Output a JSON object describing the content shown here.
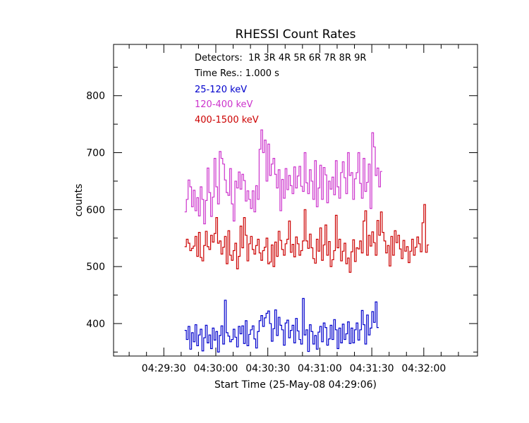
{
  "chart_data": {
    "type": "line",
    "title": "RHESSI Count Rates",
    "xlabel": "Start Time (25-May-08 04:29:06)",
    "ylabel": "counts",
    "x_tick_labels": [
      "04:29:30",
      "04:30:00",
      "04:30:30",
      "04:31:00",
      "04:31:30",
      "04:32:00"
    ],
    "x_tick_seconds": [
      24,
      54,
      84,
      114,
      144,
      174
    ],
    "xlim_seconds": [
      -5,
      205
    ],
    "y_ticks": [
      400,
      500,
      600,
      700,
      800
    ],
    "ylim": [
      343,
      890
    ],
    "grid": false,
    "annotations": {
      "detectors": "Detectors:  1R 3R 4R 5R 6R 7R 8R 9R",
      "time_res": "Time Res.: 1.000 s"
    },
    "series": [
      {
        "name": "25-120 keV",
        "color": "#0000cc",
        "start_seconds": 36,
        "step_seconds": 1,
        "values": [
          388,
          372,
          395,
          355,
          384,
          368,
          398,
          361,
          380,
          390,
          352,
          375,
          397,
          366,
          380,
          356,
          392,
          371,
          386,
          350,
          379,
          396,
          364,
          441,
          384,
          378,
          368,
          372,
          390,
          376,
          359,
          395,
          382,
          396,
          365,
          405,
          361,
          381,
          389,
          396,
          373,
          357,
          386,
          405,
          414,
          395,
          410,
          418,
          422,
          400,
          369,
          391,
          424,
          379,
          411,
          397,
          389,
          362,
          401,
          406,
          375,
          388,
          397,
          366,
          409,
          387,
          372,
          364,
          444,
          380,
          389,
          351,
          398,
          386,
          364,
          379,
          355,
          385,
          395,
          368,
          401,
          393,
          362,
          373,
          397,
          372,
          407,
          389,
          356,
          392,
          366,
          399,
          372,
          382,
          403,
          365,
          392,
          366,
          389,
          401,
          371,
          389,
          423,
          398,
          364,
          415,
          380,
          392,
          421,
          402,
          438,
          393
        ]
      },
      {
        "name": "120-400 keV",
        "color": "#cc33cc",
        "start_seconds": 36,
        "step_seconds": 1,
        "values": [
          596,
          618,
          652,
          640,
          605,
          634,
          598,
          621,
          589,
          640,
          618,
          575,
          616,
          673,
          630,
          588,
          622,
          690,
          640,
          610,
          702,
          690,
          680,
          652,
          630,
          625,
          672,
          610,
          580,
          650,
          638,
          666,
          636,
          662,
          651,
          615,
          633,
          618,
          602,
          633,
          596,
          642,
          618,
          706,
          740,
          700,
          722,
          650,
          715,
          660,
          680,
          690,
          662,
          638,
          670,
          598,
          653,
          620,
          672,
          635,
          660,
          642,
          628,
          675,
          638,
          659,
          676,
          641,
          632,
          700,
          647,
          628,
          670,
          650,
          618,
          686,
          605,
          638,
          678,
          618,
          674,
          661,
          612,
          650,
          636,
          657,
          626,
          686,
          640,
          620,
          665,
          684,
          656,
          628,
          700,
          660,
          665,
          618,
          654,
          665,
          700,
          646,
          620,
          690,
          632,
          648,
          680,
          602,
          735,
          710,
          660,
          673,
          640,
          667
        ]
      },
      {
        "name": "400-1500 keV",
        "color": "#cc0000",
        "start_seconds": 36,
        "step_seconds": 1,
        "values": [
          535,
          548,
          541,
          528,
          532,
          536,
          553,
          518,
          560,
          516,
          510,
          537,
          562,
          535,
          530,
          555,
          543,
          558,
          586,
          541,
          545,
          522,
          534,
          553,
          505,
          563,
          520,
          511,
          528,
          541,
          496,
          518,
          571,
          533,
          586,
          555,
          510,
          540,
          553,
          530,
          522,
          537,
          548,
          524,
          511,
          528,
          534,
          550,
          505,
          508,
          538,
          500,
          543,
          518,
          562,
          546,
          530,
          520,
          540,
          548,
          580,
          525,
          539,
          517,
          552,
          540,
          520,
          528,
          545,
          600,
          545,
          532,
          557,
          533,
          514,
          506,
          548,
          527,
          568,
          511,
          538,
          573,
          520,
          544,
          500,
          512,
          528,
          590,
          533,
          548,
          510,
          527,
          541,
          505,
          515,
          490,
          526,
          547,
          509,
          533,
          531,
          545,
          524,
          580,
          598,
          520,
          555,
          536,
          561,
          542,
          520,
          581,
          555,
          596,
          560,
          545,
          524,
          537,
          501,
          553,
          520,
          563,
          542,
          555,
          531,
          514,
          546,
          527,
          535,
          507,
          527,
          548,
          520,
          534,
          552,
          540,
          526,
          577,
          609,
          525,
          538
        ]
      }
    ]
  }
}
